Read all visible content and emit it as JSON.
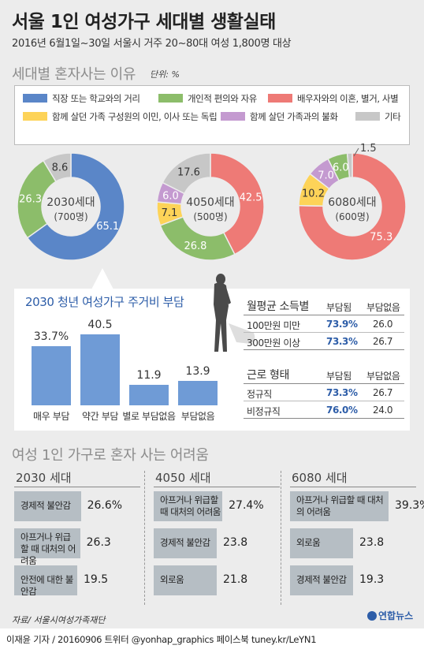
{
  "title": "서울 1인 여성가구 세대별 생활실태",
  "subtitle": "2016년 6월1일~30일 서울시 거주 20~80대 여성 1,800명 대상",
  "reasons_section": {
    "heading": "세대별 혼자사는 이유",
    "unit": "단위: %"
  },
  "legend": [
    {
      "label": "직장 또는 학교와의 거리",
      "color": "#5a86c8"
    },
    {
      "label": "개인적 편의와 자유",
      "color": "#8cbd6a"
    },
    {
      "label": "배우자와의 이혼, 별거, 사별",
      "color": "#ee7a76"
    },
    {
      "label": "함께 살던 가족 구성원의 이민, 이사 또는 독립",
      "color": "#fdd358"
    },
    {
      "label": "함께 살던 가족과의 불화",
      "color": "#c49ad0"
    },
    {
      "label": "기타",
      "color": "#c7c7c7"
    }
  ],
  "donuts": [
    {
      "name": "2030세대",
      "count": "(700명)",
      "labels": {
        "work": "65.1",
        "personal": "26.3",
        "other": "8.6"
      }
    },
    {
      "name": "4050세대",
      "count": "(500명)",
      "labels": {
        "spouse": "42.5",
        "personal": "26.8",
        "move": "7.1",
        "conflict": "6.0",
        "other": "17.6"
      }
    },
    {
      "name": "6080세대",
      "count": "(600명)",
      "labels": {
        "spouse": "75.3",
        "move": "10.2",
        "conflict": "7.0",
        "personal": "6.0",
        "other": "1.5"
      }
    }
  ],
  "housing": {
    "title": "2030 청년 여성가구 주거비 부담",
    "bars": [
      {
        "label": "매우 부담",
        "value": "33.7%"
      },
      {
        "label": "약간 부담",
        "value": "40.5"
      },
      {
        "label": "별로 부담없음",
        "value": "11.9"
      },
      {
        "label": "부담없음",
        "value": "13.9"
      }
    ],
    "income_table": {
      "header": "월평균 소득별",
      "col1": "부담됨",
      "col2": "부담없음",
      "rows": [
        {
          "label": "100만원 미만",
          "a": "73.9%",
          "b": "26.0"
        },
        {
          "label": "300만원 이상",
          "a": "73.3%",
          "b": "26.7"
        }
      ]
    },
    "work_table": {
      "header": "근로 형태",
      "col1": "부담됨",
      "col2": "부담없음",
      "rows": [
        {
          "label": "정규직",
          "a": "73.3%",
          "b": "26.7"
        },
        {
          "label": "비정규직",
          "a": "76.0%",
          "b": "24.0"
        }
      ]
    }
  },
  "difficulty": {
    "heading": "여성 1인 가구로 혼자 사는 어려움",
    "groups": [
      {
        "title": "2030 세대",
        "items": [
          {
            "label": "경제적 불안감",
            "value": "26.6%"
          },
          {
            "label": "아프거나 위급할 때 대처의 어려움",
            "value": "26.3"
          },
          {
            "label": "안전에 대한 불안감",
            "value": "19.5"
          }
        ]
      },
      {
        "title": "4050 세대",
        "items": [
          {
            "label": "아프거나 위급할 때 대처의 어려움",
            "value": "27.4%"
          },
          {
            "label": "경제적 불안감",
            "value": "23.8"
          },
          {
            "label": "외로움",
            "value": "21.8"
          }
        ]
      },
      {
        "title": "6080 세대",
        "items": [
          {
            "label": "아프거나 위급할 때 대처의 어려움",
            "value": "39.3%"
          },
          {
            "label": "외로움",
            "value": "23.8"
          },
          {
            "label": "경제적 불안감",
            "value": "19.3"
          }
        ]
      }
    ]
  },
  "source": "자료/ 서울시여성가족재단",
  "credit": "이재윤 기자 / 20160906  트위터 @yonhap_graphics  페이스북 tuney.kr/LeYN1",
  "logo": "연합뉴스",
  "chart_data": [
    {
      "type": "pie",
      "title": "2030세대",
      "categories": [
        "직장 또는 학교와의 거리",
        "개인적 편의와 자유",
        "기타"
      ],
      "values": [
        65.1,
        26.3,
        8.6
      ]
    },
    {
      "type": "pie",
      "title": "4050세대",
      "categories": [
        "배우자와의 이혼, 별거, 사별",
        "개인적 편의와 자유",
        "함께 살던 가족 구성원의 이민, 이사 또는 독립",
        "함께 살던 가족과의 불화",
        "기타"
      ],
      "values": [
        42.5,
        26.8,
        7.1,
        6.0,
        17.6
      ]
    },
    {
      "type": "pie",
      "title": "6080세대",
      "categories": [
        "배우자와의 이혼, 별거, 사별",
        "함께 살던 가족 구성원의 이민, 이사 또는 독립",
        "함께 살던 가족과의 불화",
        "개인적 편의와 자유",
        "기타"
      ],
      "values": [
        75.3,
        10.2,
        7.0,
        6.0,
        1.5
      ]
    },
    {
      "type": "bar",
      "title": "2030 청년 여성가구 주거비 부담",
      "categories": [
        "매우 부담",
        "약간 부담",
        "별로 부담없음",
        "부담없음"
      ],
      "values": [
        33.7,
        40.5,
        11.9,
        13.9
      ]
    },
    {
      "type": "bar",
      "title": "2030 세대",
      "categories": [
        "경제적 불안감",
        "아프거나 위급할 때 대처의 어려움",
        "안전에 대한 불안감"
      ],
      "values": [
        26.6,
        26.3,
        19.5
      ]
    },
    {
      "type": "bar",
      "title": "4050 세대",
      "categories": [
        "아프거나 위급할 때 대처의 어려움",
        "경제적 불안감",
        "외로움"
      ],
      "values": [
        27.4,
        23.8,
        21.8
      ]
    },
    {
      "type": "bar",
      "title": "6080 세대",
      "categories": [
        "아프거나 위급할 때 대처의 어려움",
        "외로움",
        "경제적 불안감"
      ],
      "values": [
        39.3,
        23.8,
        19.3
      ]
    }
  ]
}
